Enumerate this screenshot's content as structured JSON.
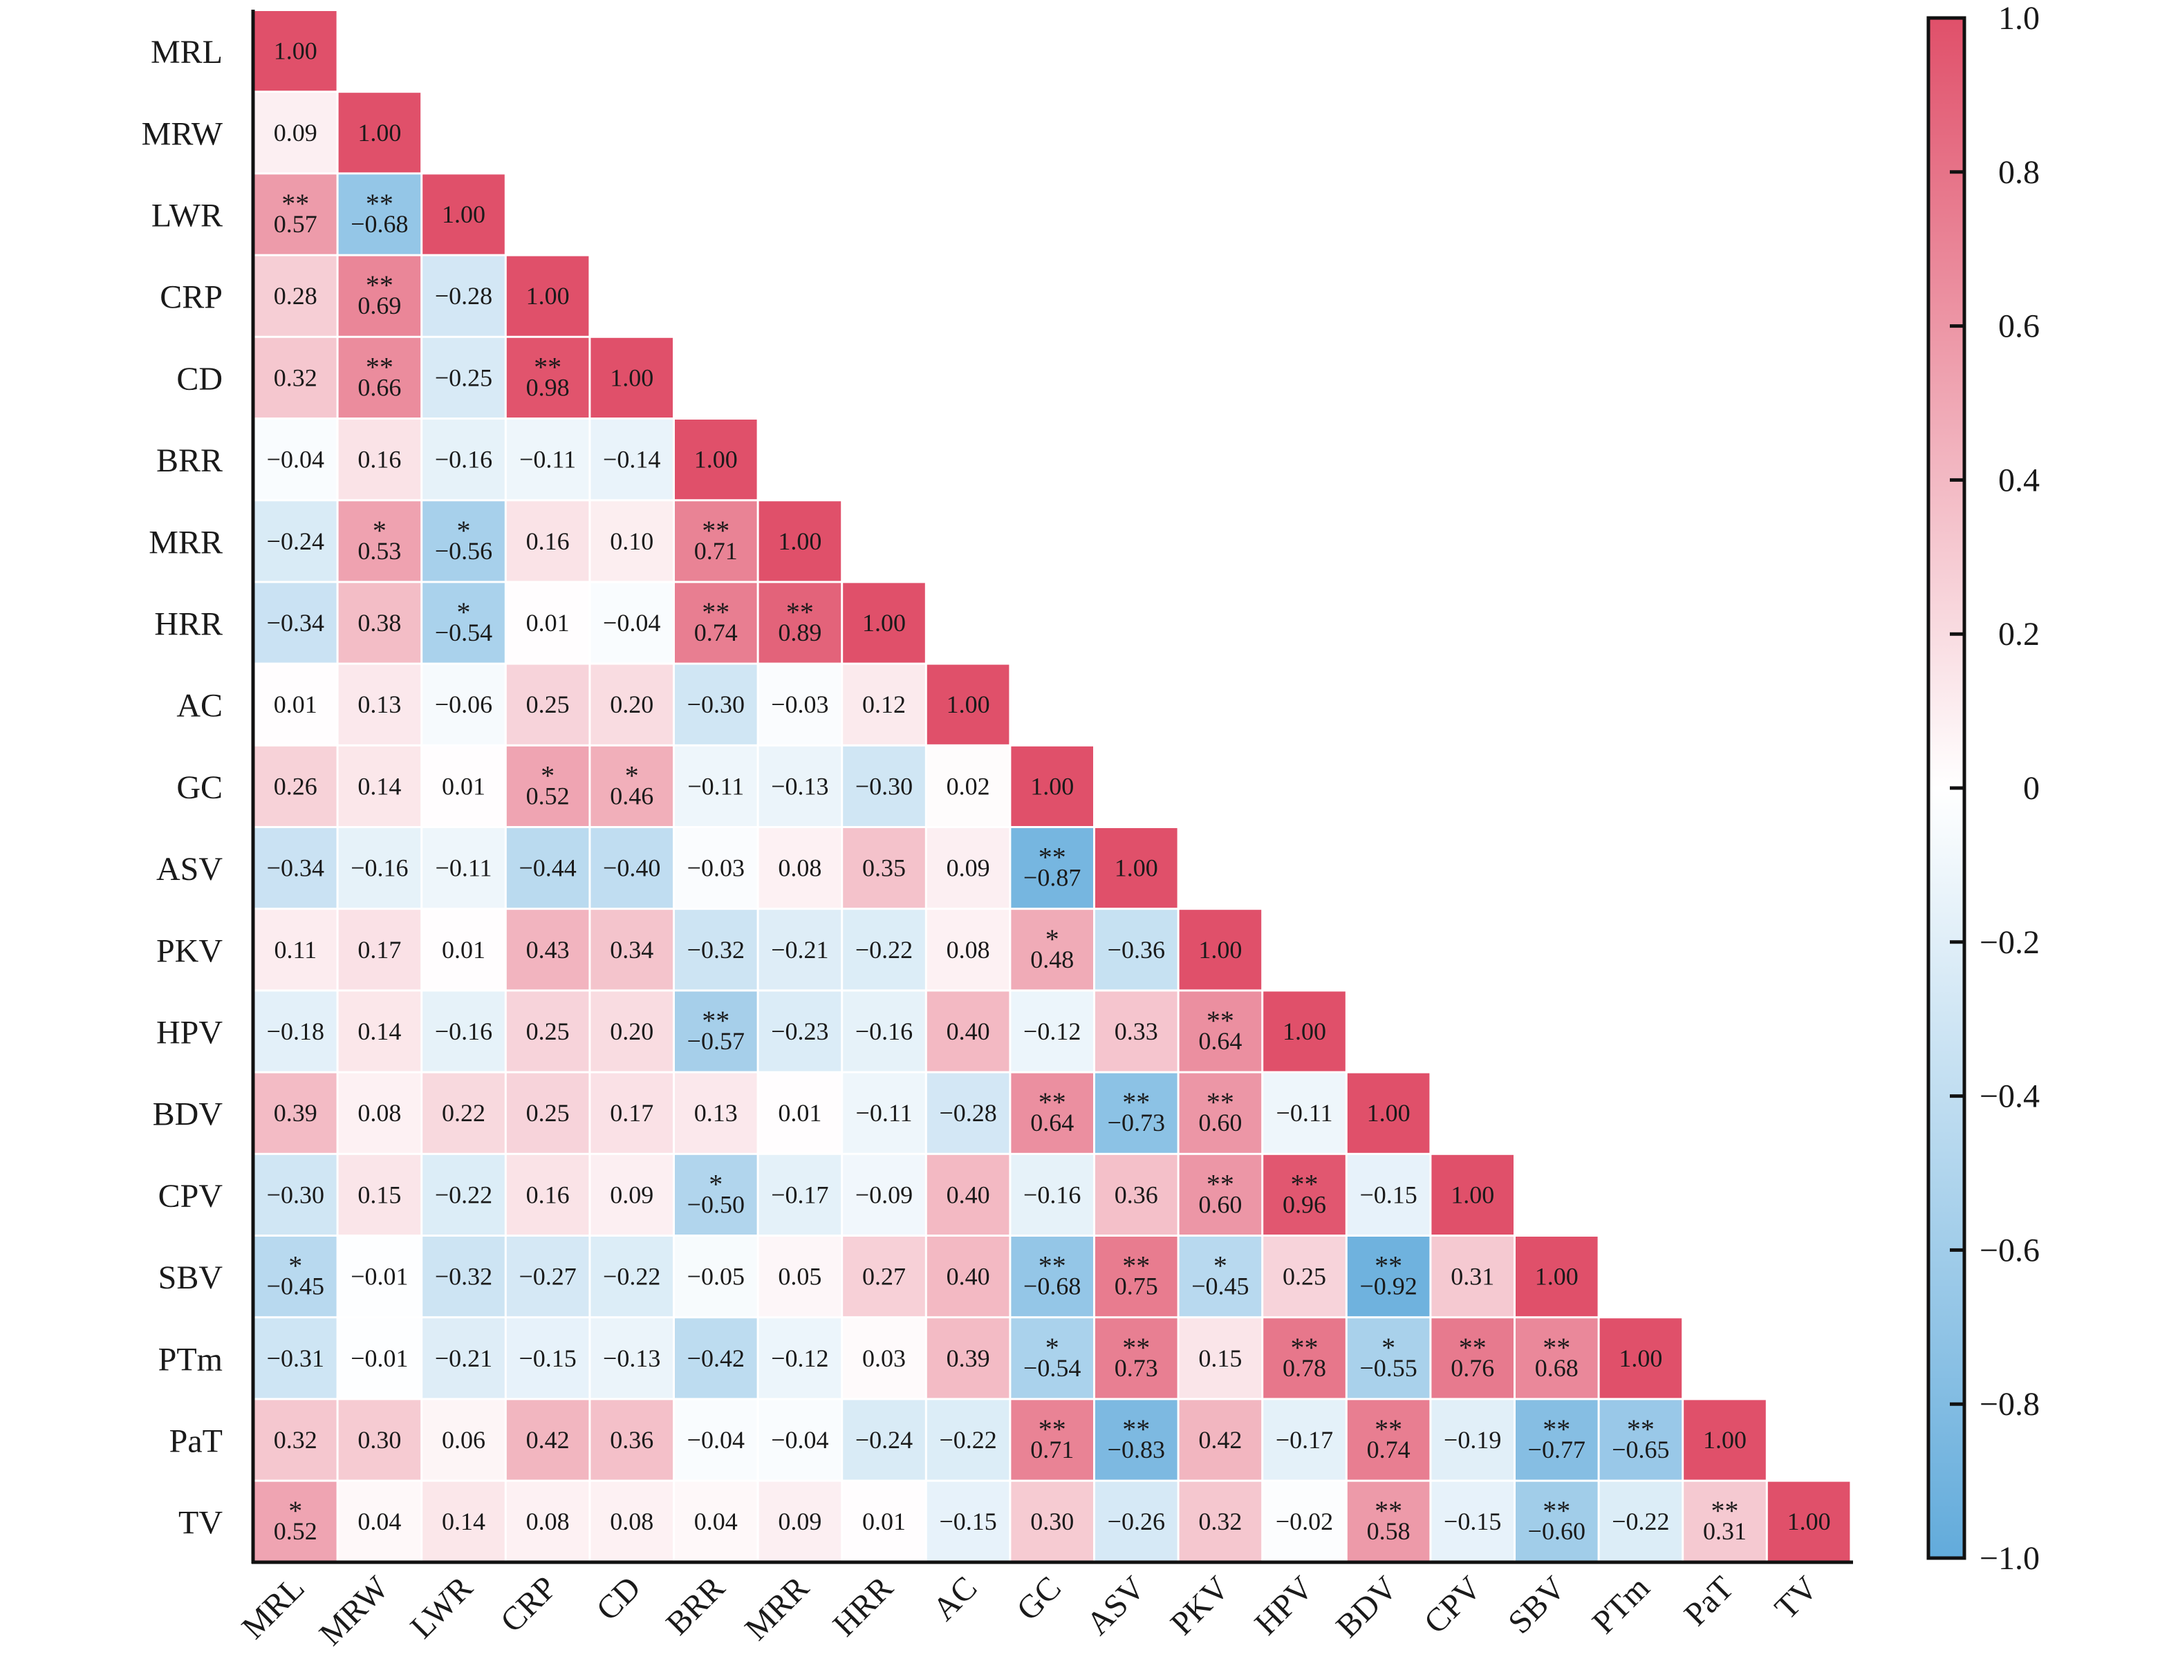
{
  "chart_data": {
    "type": "heatmap",
    "title": "",
    "variables": [
      "MRL",
      "MRW",
      "LWR",
      "CRP",
      "CD",
      "BRR",
      "MRR",
      "HRR",
      "AC",
      "GC",
      "ASV",
      "PKV",
      "HPV",
      "BDV",
      "CPV",
      "SBV",
      "PTm",
      "PaT",
      "TV"
    ],
    "matrix_lower": [
      [
        "1.00"
      ],
      [
        "0.09",
        "1.00"
      ],
      [
        "0.57",
        "-0.68",
        "1.00"
      ],
      [
        "0.28",
        "0.69",
        "-0.28",
        "1.00"
      ],
      [
        "0.32",
        "0.66",
        "-0.25",
        "0.98",
        "1.00"
      ],
      [
        "-0.04",
        "0.16",
        "-0.16",
        "-0.11",
        "-0.14",
        "1.00"
      ],
      [
        "-0.24",
        "0.53",
        "-0.56",
        "0.16",
        "0.10",
        "0.71",
        "1.00"
      ],
      [
        "-0.34",
        "0.38",
        "-0.54",
        "0.01",
        "-0.04",
        "0.74",
        "0.89",
        "1.00"
      ],
      [
        "0.01",
        "0.13",
        "-0.06",
        "0.25",
        "0.20",
        "-0.30",
        "-0.03",
        "0.12",
        "1.00"
      ],
      [
        "0.26",
        "0.14",
        "0.01",
        "0.52",
        "0.46",
        "-0.11",
        "-0.13",
        "-0.30",
        "0.02",
        "1.00"
      ],
      [
        "-0.34",
        "-0.16",
        "-0.11",
        "-0.44",
        "-0.40",
        "-0.03",
        "0.08",
        "0.35",
        "0.09",
        "-0.87",
        "1.00"
      ],
      [
        "0.11",
        "0.17",
        "0.01",
        "0.43",
        "0.34",
        "-0.32",
        "-0.21",
        "-0.22",
        "0.08",
        "0.48",
        "-0.36",
        "1.00"
      ],
      [
        "-0.18",
        "0.14",
        "-0.16",
        "0.25",
        "0.20",
        "-0.57",
        "-0.23",
        "-0.16",
        "0.40",
        "-0.12",
        "0.33",
        "0.64",
        "1.00"
      ],
      [
        "0.39",
        "0.08",
        "0.22",
        "0.25",
        "0.17",
        "0.13",
        "0.01",
        "-0.11",
        "-0.28",
        "0.64",
        "-0.73",
        "0.60",
        "-0.11",
        "1.00"
      ],
      [
        "-0.30",
        "0.15",
        "-0.22",
        "0.16",
        "0.09",
        "-0.50",
        "-0.17",
        "-0.09",
        "0.40",
        "-0.16",
        "0.36",
        "0.60",
        "0.96",
        "-0.15",
        "1.00"
      ],
      [
        "-0.45",
        "-0.01",
        "-0.32",
        "-0.27",
        "-0.22",
        "-0.05",
        "0.05",
        "0.27",
        "0.40",
        "-0.68",
        "0.75",
        "-0.45",
        "0.25",
        "-0.92",
        "0.31",
        "1.00"
      ],
      [
        "-0.31",
        "-0.01",
        "-0.21",
        "-0.15",
        "-0.13",
        "-0.42",
        "-0.12",
        "0.03",
        "0.39",
        "-0.54",
        "0.73",
        "0.15",
        "0.78",
        "-0.55",
        "0.76",
        "0.68",
        "1.00"
      ],
      [
        "0.32",
        "0.30",
        "0.06",
        "0.42",
        "0.36",
        "-0.04",
        "-0.04",
        "-0.24",
        "-0.22",
        "0.71",
        "-0.83",
        "0.42",
        "-0.17",
        "0.74",
        "-0.19",
        "-0.77",
        "-0.65",
        "1.00"
      ],
      [
        "0.52",
        "0.04",
        "0.14",
        "0.08",
        "0.08",
        "0.04",
        "0.09",
        "0.01",
        "-0.15",
        "0.30",
        "-0.26",
        "0.32",
        "-0.02",
        "0.58",
        "-0.15",
        "-0.60",
        "-0.22",
        "0.31",
        "1.00"
      ]
    ],
    "significance_lower": [
      [
        ""
      ],
      [
        "",
        ""
      ],
      [
        "**",
        "**",
        ""
      ],
      [
        "",
        "**",
        "",
        ""
      ],
      [
        "",
        "**",
        "",
        "**",
        ""
      ],
      [
        "",
        "",
        "",
        "",
        "",
        ""
      ],
      [
        "",
        "*",
        "*",
        "",
        "",
        "**",
        ""
      ],
      [
        "",
        "",
        "*",
        "",
        "",
        "**",
        "**",
        ""
      ],
      [
        "",
        "",
        "",
        "",
        "",
        "",
        "",
        "",
        ""
      ],
      [
        "",
        "",
        "",
        "*",
        "*",
        "",
        "",
        "",
        "",
        ""
      ],
      [
        "",
        "",
        "",
        "",
        "",
        "",
        "",
        "",
        "",
        "**",
        ""
      ],
      [
        "",
        "",
        "",
        "",
        "",
        "",
        "",
        "",
        "",
        "*",
        "",
        ""
      ],
      [
        "",
        "",
        "",
        "",
        "",
        "**",
        "",
        "",
        "",
        "",
        "",
        "**",
        ""
      ],
      [
        "",
        "",
        "",
        "",
        "",
        "",
        "",
        "",
        "",
        "**",
        "**",
        "**",
        "",
        ""
      ],
      [
        "",
        "",
        "",
        "",
        "",
        "*",
        "",
        "",
        "",
        "",
        "",
        "**",
        "**",
        "",
        ""
      ],
      [
        "*",
        "",
        "",
        "",
        "",
        "",
        "",
        "",
        "",
        "**",
        "**",
        "*",
        "",
        "**",
        "",
        ""
      ],
      [
        "",
        "",
        "",
        "",
        "",
        "",
        "",
        "",
        "",
        "*",
        "**",
        "",
        "**",
        "*",
        "**",
        "**",
        ""
      ],
      [
        "",
        "",
        "",
        "",
        "",
        "",
        "",
        "",
        "",
        "**",
        "**",
        "",
        "",
        "**",
        "",
        "**",
        "**",
        ""
      ],
      [
        "*",
        "",
        "",
        "",
        "",
        "",
        "",
        "",
        "",
        "",
        "",
        "",
        "",
        "**",
        "",
        "**",
        "",
        "**",
        ""
      ]
    ],
    "colorbar": {
      "range": [
        -1.0,
        1.0
      ],
      "ticks": [
        "1.0",
        "0.8",
        "0.6",
        "0.4",
        "0.2",
        "0",
        "−0.2",
        "−0.4",
        "−0.6",
        "−0.8",
        "−1.0"
      ],
      "tick_values": [
        1.0,
        0.8,
        0.6,
        0.4,
        0.2,
        0,
        -0.2,
        -0.4,
        -0.6,
        -0.8,
        -1.0
      ],
      "placement": "right"
    },
    "colors": {
      "positive": "#e0506a",
      "zero": "#ffffff",
      "negative": "#62abdb"
    },
    "grid": false,
    "xlabel": "",
    "ylabel": ""
  }
}
